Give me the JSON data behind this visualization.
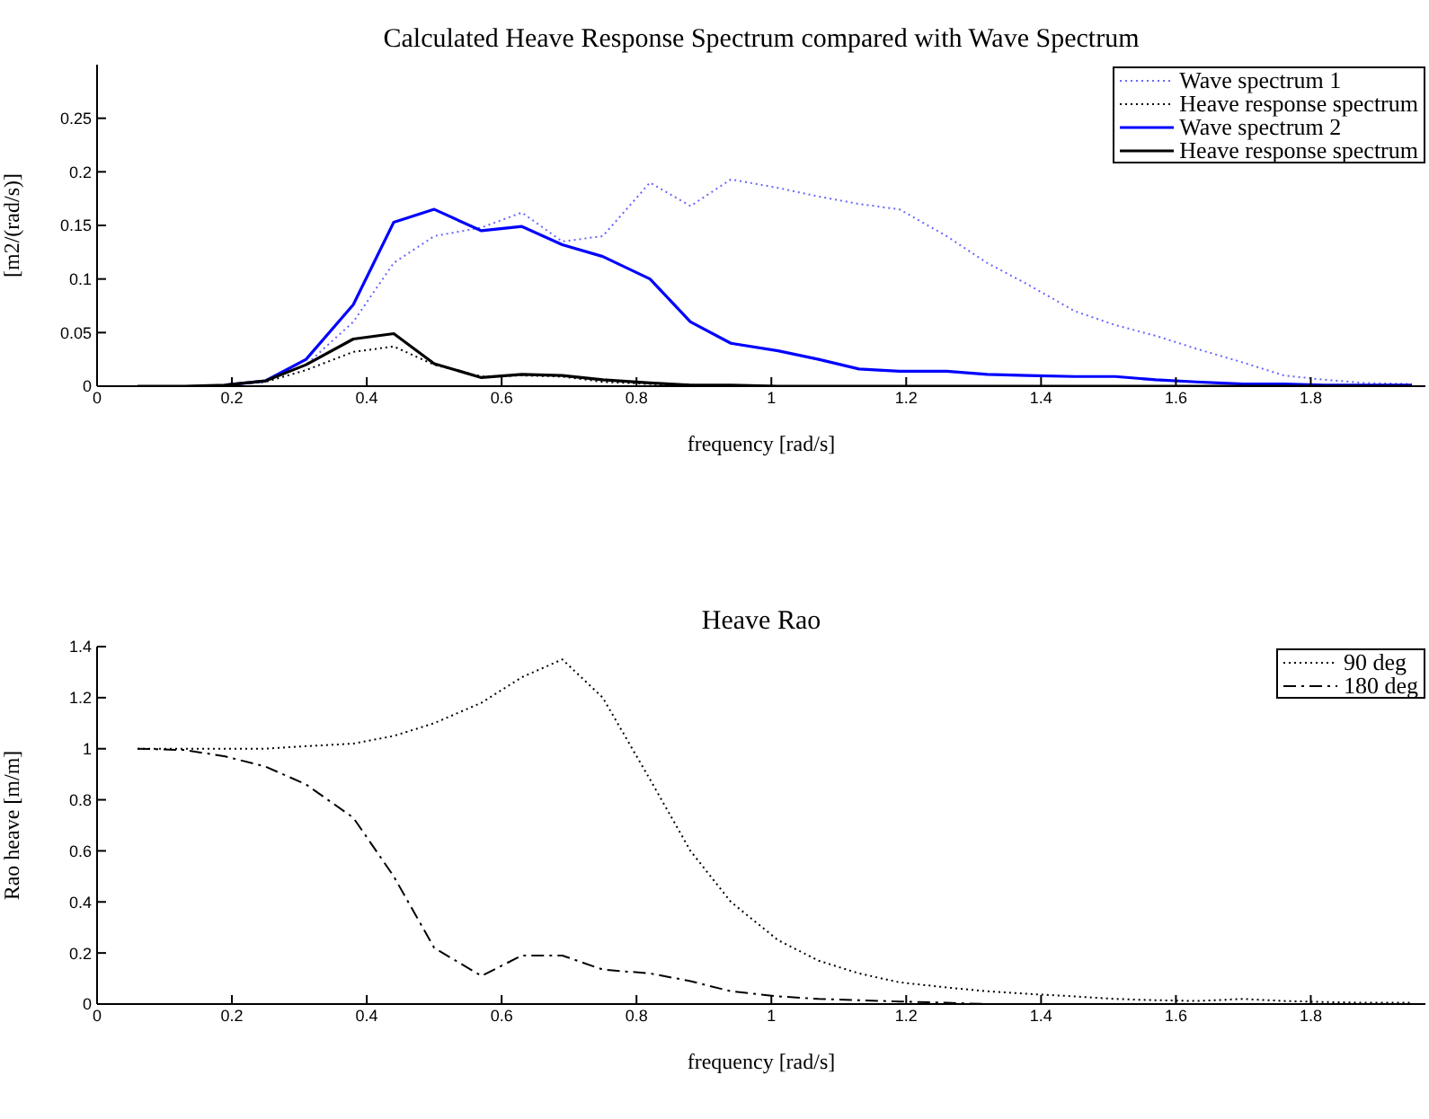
{
  "chart_data": [
    {
      "type": "line",
      "title": "Calculated Heave Response Spectrum compared with Wave Spectrum",
      "xlabel": "frequency [rad/s]",
      "ylabel": "[m2/(rad/s)]",
      "x": [
        0.06,
        0.13,
        0.19,
        0.25,
        0.31,
        0.38,
        0.44,
        0.5,
        0.57,
        0.63,
        0.69,
        0.75,
        0.82,
        0.88,
        0.94,
        1.01,
        1.07,
        1.13,
        1.19,
        1.26,
        1.32,
        1.38,
        1.45,
        1.51,
        1.57,
        1.63,
        1.7,
        1.76,
        1.82,
        1.88,
        1.95
      ],
      "series": [
        {
          "name": "Wave spectrum 1",
          "color": "#6666ff",
          "line_style": "dotted",
          "values": [
            null,
            null,
            0.001,
            0.005,
            0.02,
            0.06,
            0.115,
            0.14,
            0.148,
            0.162,
            0.135,
            0.14,
            0.19,
            0.168,
            0.193,
            0.185,
            0.177,
            0.17,
            0.165,
            0.14,
            0.115,
            0.095,
            0.07,
            0.057,
            0.047,
            0.035,
            0.022,
            0.01,
            0.006,
            0.003,
            0.002
          ]
        },
        {
          "name": "Heave response spectrum",
          "color": "#000000",
          "line_style": "dotted",
          "values": [
            0,
            0,
            0.001,
            0.004,
            0.015,
            0.032,
            0.037,
            0.02,
            0.009,
            0.01,
            0.009,
            0.004,
            0.002,
            0.001,
            0,
            0,
            0,
            0,
            0,
            0,
            0,
            0,
            0,
            0,
            0,
            0,
            0,
            0,
            0,
            0,
            0
          ]
        },
        {
          "name": "Wave spectrum 2",
          "color": "#0000ff",
          "line_style": "solid",
          "values": [
            null,
            null,
            0.001,
            0.005,
            0.025,
            0.076,
            0.153,
            0.165,
            0.145,
            0.149,
            0.132,
            0.121,
            0.1,
            0.06,
            0.04,
            0.033,
            0.025,
            0.016,
            0.014,
            0.014,
            0.011,
            0.01,
            0.009,
            0.009,
            0.006,
            0.004,
            0.002,
            0.002,
            0.001,
            0.001,
            0.001
          ]
        },
        {
          "name": "Heave response spectrum",
          "color": "#000000",
          "line_style": "solid",
          "values": [
            0,
            0,
            0.001,
            0.005,
            0.02,
            0.044,
            0.049,
            0.021,
            0.008,
            0.011,
            0.01,
            0.006,
            0.003,
            0.001,
            0.001,
            0,
            0,
            0,
            0,
            0,
            0,
            0,
            0,
            0,
            0,
            0,
            0,
            0,
            0,
            0,
            0
          ]
        }
      ],
      "xlim": [
        0,
        1.97
      ],
      "xticks": [
        0,
        0.2,
        0.4,
        0.6,
        0.8,
        1,
        1.2,
        1.4,
        1.6,
        1.8
      ],
      "ylim": [
        0,
        0.3
      ],
      "yticks": [
        0,
        0.05,
        0.1,
        0.15,
        0.2,
        0.25
      ],
      "grid": false,
      "legend": "top right",
      "marker": "none"
    },
    {
      "type": "line",
      "title": "Heave Rao",
      "xlabel": "frequency [rad/s]",
      "ylabel": "Rao heave [m/m]",
      "x": [
        0.06,
        0.13,
        0.19,
        0.25,
        0.31,
        0.38,
        0.44,
        0.5,
        0.57,
        0.63,
        0.69,
        0.75,
        0.82,
        0.88,
        0.94,
        1.01,
        1.07,
        1.13,
        1.19,
        1.26,
        1.32,
        1.38,
        1.45,
        1.51,
        1.57,
        1.63,
        1.7,
        1.76,
        1.82,
        1.88,
        1.95
      ],
      "series": [
        {
          "name": "90 deg",
          "color": "#000000",
          "line_style": "dotted",
          "values": [
            1,
            1,
            1,
            1,
            1.01,
            1.02,
            1.05,
            1.1,
            1.18,
            1.28,
            1.35,
            1.2,
            0.88,
            0.6,
            0.4,
            0.25,
            0.17,
            0.12,
            0.085,
            0.065,
            0.05,
            0.04,
            0.03,
            0.02,
            0.015,
            0.012,
            0.02,
            0.012,
            0.008,
            0.005,
            0.005
          ]
        },
        {
          "name": "180 deg",
          "color": "#000000",
          "line_style": "dashed",
          "values": [
            1,
            0.995,
            0.97,
            0.93,
            0.86,
            0.73,
            0.5,
            0.22,
            0.11,
            0.19,
            0.19,
            0.135,
            0.12,
            0.09,
            0.05,
            0.03,
            0.02,
            0.015,
            0.01,
            0.005,
            0,
            0,
            0,
            0,
            0,
            0,
            0,
            0,
            0,
            0,
            0
          ]
        }
      ],
      "xlim": [
        0,
        1.97
      ],
      "xticks": [
        0,
        0.2,
        0.4,
        0.6,
        0.8,
        1,
        1.2,
        1.4,
        1.6,
        1.8
      ],
      "ylim": [
        0,
        1.4
      ],
      "yticks": [
        0,
        0.2,
        0.4,
        0.6,
        0.8,
        1,
        1.2,
        1.4
      ],
      "grid": false,
      "legend": "top right",
      "marker": "none"
    }
  ]
}
